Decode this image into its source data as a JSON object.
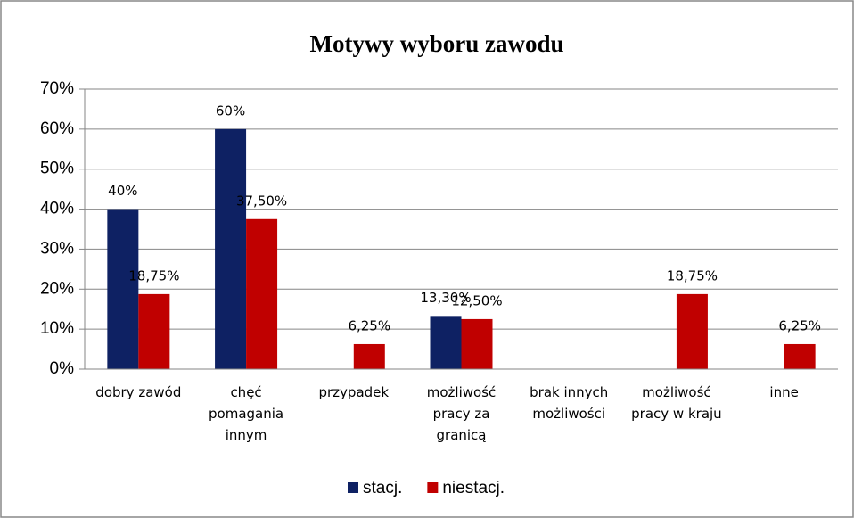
{
  "chart_data": {
    "type": "bar",
    "title": "Motywy wyboru zawodu",
    "categories": [
      "dobry zawód",
      "chęć pomagania innym",
      "przypadek",
      "możliwość pracy za granicą",
      "brak innych możliwości",
      "możliwość pracy w kraju",
      "inne"
    ],
    "series": [
      {
        "name": "stacj.",
        "color": "#0e2163",
        "values": [
          40,
          60,
          null,
          13.3,
          null,
          null,
          null
        ],
        "value_labels": [
          "40%",
          "60%",
          null,
          "13,30%",
          null,
          null,
          null
        ]
      },
      {
        "name": "niestacj.",
        "color": "#c00000",
        "values": [
          18.75,
          37.5,
          6.25,
          12.5,
          null,
          18.75,
          6.25
        ],
        "value_labels": [
          "18,75%",
          "37,50%",
          "6,25%",
          "12,50%",
          null,
          "18,75%",
          "6,25%"
        ]
      }
    ],
    "ylim": [
      0,
      70
    ],
    "yticks": [
      {
        "value": 0,
        "label": "0%"
      },
      {
        "value": 10,
        "label": "10%"
      },
      {
        "value": 20,
        "label": "20%"
      },
      {
        "value": 30,
        "label": "30%"
      },
      {
        "value": 40,
        "label": "40%"
      },
      {
        "value": 50,
        "label": "50%"
      },
      {
        "value": 60,
        "label": "60%"
      },
      {
        "value": 70,
        "label": "70%"
      }
    ],
    "grid": true,
    "legend": "bottom"
  }
}
